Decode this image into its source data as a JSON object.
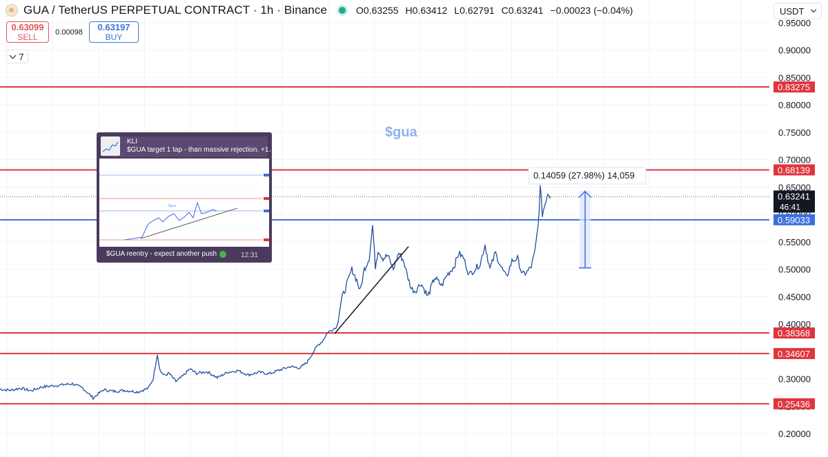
{
  "header": {
    "title": "GUA / TetherUS PERPETUAL CONTRACT · 1h · Binance",
    "ohlc": [
      {
        "k": "O",
        "v": "0.63255"
      },
      {
        "k": "H",
        "v": "0.63412"
      },
      {
        "k": "L",
        "v": "0.62791"
      },
      {
        "k": "C",
        "v": "0.63241"
      }
    ],
    "change": "−0.00023 (−0.04%)"
  },
  "trade": {
    "sell_price": "0.63099",
    "sell_label": "SELL",
    "spread": "0.00098",
    "buy_price": "0.63197",
    "buy_label": "BUY"
  },
  "indicators_toggle": {
    "count": "7"
  },
  "currency": {
    "label": "USDT"
  },
  "annotation_text": "$gua",
  "measure_label": "0.14059 (27.98%) 14,059",
  "inset": {
    "author": "KLI",
    "message_top": "$GUA target 1 tap - than massive rejection. +1…",
    "message_bottom": "$GUA reentry - expect another push",
    "time": "12:31"
  },
  "chart_data": {
    "type": "line",
    "title": "GUA / TetherUS PERPETUAL CONTRACT · 1h · Binance",
    "xlabel": "",
    "ylabel": "",
    "ylim": [
      0.18,
      0.965
    ],
    "y_ticks": [
      "0.95000",
      "0.90000",
      "0.85000",
      "0.80000",
      "0.75000",
      "0.70000",
      "0.65000",
      "0.60000",
      "0.55000",
      "0.50000",
      "0.45000",
      "0.40000",
      "0.35000",
      "0.30000",
      "0.25000",
      "0.20000"
    ],
    "grid": true,
    "price_series": [
      [
        0,
        0.281
      ],
      [
        15,
        0.279
      ],
      [
        30,
        0.283
      ],
      [
        45,
        0.278
      ],
      [
        60,
        0.285
      ],
      [
        75,
        0.287
      ],
      [
        90,
        0.289
      ],
      [
        105,
        0.291
      ],
      [
        120,
        0.283
      ],
      [
        135,
        0.265
      ],
      [
        150,
        0.28
      ],
      [
        165,
        0.277
      ],
      [
        180,
        0.279
      ],
      [
        200,
        0.276
      ],
      [
        215,
        0.283
      ],
      [
        222,
        0.3
      ],
      [
        228,
        0.345
      ],
      [
        232,
        0.315
      ],
      [
        238,
        0.306
      ],
      [
        245,
        0.31
      ],
      [
        255,
        0.295
      ],
      [
        265,
        0.305
      ],
      [
        275,
        0.318
      ],
      [
        285,
        0.31
      ],
      [
        300,
        0.313
      ],
      [
        315,
        0.302
      ],
      [
        330,
        0.312
      ],
      [
        345,
        0.315
      ],
      [
        360,
        0.307
      ],
      [
        375,
        0.312
      ],
      [
        390,
        0.309
      ],
      [
        405,
        0.316
      ],
      [
        420,
        0.322
      ],
      [
        435,
        0.32
      ],
      [
        445,
        0.33
      ],
      [
        452,
        0.345
      ],
      [
        460,
        0.36
      ],
      [
        468,
        0.37
      ],
      [
        475,
        0.385
      ],
      [
        482,
        0.39
      ],
      [
        488,
        0.395
      ],
      [
        495,
        0.445
      ],
      [
        502,
        0.47
      ],
      [
        510,
        0.5
      ],
      [
        517,
        0.48
      ],
      [
        522,
        0.46
      ],
      [
        528,
        0.5
      ],
      [
        535,
        0.52
      ],
      [
        540,
        0.58
      ],
      [
        544,
        0.505
      ],
      [
        548,
        0.535
      ],
      [
        555,
        0.52
      ],
      [
        562,
        0.525
      ],
      [
        570,
        0.5
      ],
      [
        578,
        0.53
      ],
      [
        585,
        0.515
      ],
      [
        590,
        0.49
      ],
      [
        596,
        0.465
      ],
      [
        602,
        0.46
      ],
      [
        610,
        0.475
      ],
      [
        620,
        0.45
      ],
      [
        630,
        0.485
      ],
      [
        640,
        0.47
      ],
      [
        648,
        0.49
      ],
      [
        658,
        0.505
      ],
      [
        665,
        0.53
      ],
      [
        672,
        0.52
      ],
      [
        680,
        0.49
      ],
      [
        688,
        0.5
      ],
      [
        696,
        0.51
      ],
      [
        703,
        0.545
      ],
      [
        710,
        0.5
      ],
      [
        718,
        0.53
      ],
      [
        726,
        0.505
      ],
      [
        734,
        0.485
      ],
      [
        742,
        0.515
      ],
      [
        750,
        0.52
      ],
      [
        757,
        0.49
      ],
      [
        764,
        0.495
      ],
      [
        770,
        0.505
      ],
      [
        775,
        0.53
      ],
      [
        780,
        0.58
      ],
      [
        783,
        0.65
      ],
      [
        786,
        0.6
      ],
      [
        790,
        0.62
      ],
      [
        794,
        0.64
      ],
      [
        798,
        0.632
      ]
    ],
    "horizontal_levels": [
      {
        "value": 0.83275,
        "label": "0.83275",
        "color": "#e0353d"
      },
      {
        "value": 0.68139,
        "label": "0.68139",
        "color": "#e0353d"
      },
      {
        "value": 0.59033,
        "label": "0.59033",
        "color": "#3a6fe0"
      },
      {
        "value": 0.38368,
        "label": "0.38368",
        "color": "#e0353d"
      },
      {
        "value": 0.34607,
        "label": "0.34607",
        "color": "#e0353d"
      },
      {
        "value": 0.25436,
        "label": "0.25436",
        "color": "#e0353d"
      }
    ],
    "current_price": {
      "value": 0.63241,
      "label": "0.63241",
      "countdown": "46:41"
    },
    "trendline": {
      "from": [
        485,
        0.3825
      ],
      "to": [
        592,
        0.5415
      ]
    },
    "measure": {
      "x": 848,
      "from": 0.5025,
      "to": 0.6434,
      "text": "0.14059 (27.98%) 14,059"
    }
  }
}
